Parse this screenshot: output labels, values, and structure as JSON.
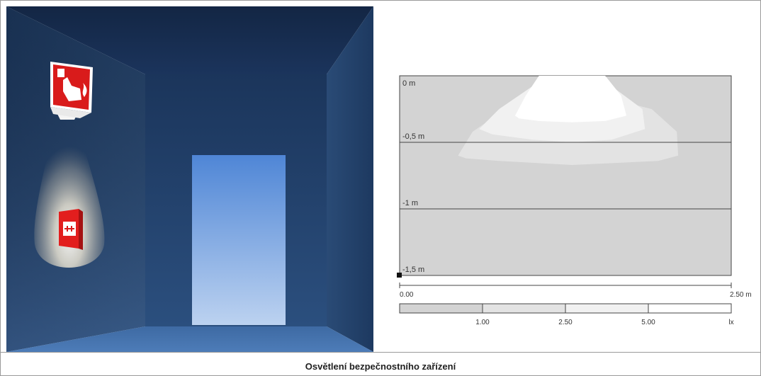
{
  "scene": {
    "description_icons": [
      "fire-alarm-call-point-sign-icon",
      "manual-call-point-icon"
    ],
    "colors": {
      "wall": "#1e3a63",
      "ceiling": "#14284a",
      "door_top": "#4f86d6",
      "door_bottom": "#bcd2f0",
      "sign_red": "#d91b1b"
    }
  },
  "chart_data": {
    "type": "heatmap",
    "title": "",
    "depth_labels": [
      "0 m",
      "-0,5 m",
      "-1 m",
      "-1,5 m"
    ],
    "depth_values": [
      0,
      -0.5,
      -1,
      -1.5
    ],
    "x_scale_labels": [
      "0.00",
      "2.50 m"
    ],
    "x_range": [
      0,
      2.5
    ],
    "y_range": [
      -1.5,
      0
    ],
    "lux_legend": {
      "labels": [
        "1.00",
        "2.50",
        "5.00",
        "lx"
      ],
      "thresholds": [
        1.0,
        2.5,
        5.0
      ],
      "colors": [
        "#d3d3d3",
        "#e3e3e3",
        "#f1f1f1",
        "#ffffff"
      ]
    },
    "isolux_contours": [
      {
        "lux": 1.0,
        "x": [
          0.44,
          0.55,
          0.8,
          1.3,
          1.9,
          2.09,
          2.1,
          1.95,
          1.3,
          0.75,
          0.5,
          0.44
        ],
        "y": [
          -0.6,
          -0.42,
          -0.25,
          -0.1,
          -0.25,
          -0.42,
          -0.6,
          -0.64,
          -0.67,
          -0.64,
          -0.62,
          -0.6
        ]
      },
      {
        "lux": 2.5,
        "x": [
          0.6,
          0.75,
          1.0,
          1.3,
          1.6,
          1.83,
          1.85,
          1.6,
          1.3,
          1.0,
          0.7,
          0.6
        ],
        "y": [
          -0.4,
          -0.25,
          -0.08,
          0.0,
          -0.08,
          -0.25,
          -0.4,
          -0.48,
          -0.5,
          -0.48,
          -0.44,
          -0.4
        ]
      },
      {
        "lux": 5.0,
        "x": [
          0.87,
          0.95,
          1.05,
          1.3,
          1.55,
          1.67,
          1.71,
          1.55,
          1.3,
          1.05,
          0.9,
          0.87
        ],
        "y": [
          -0.3,
          -0.15,
          0.0,
          0.0,
          0.0,
          -0.15,
          -0.3,
          -0.34,
          -0.35,
          -0.34,
          -0.32,
          -0.3
        ]
      }
    ]
  },
  "caption": "Osvětlení bezpečnostního zařízení"
}
